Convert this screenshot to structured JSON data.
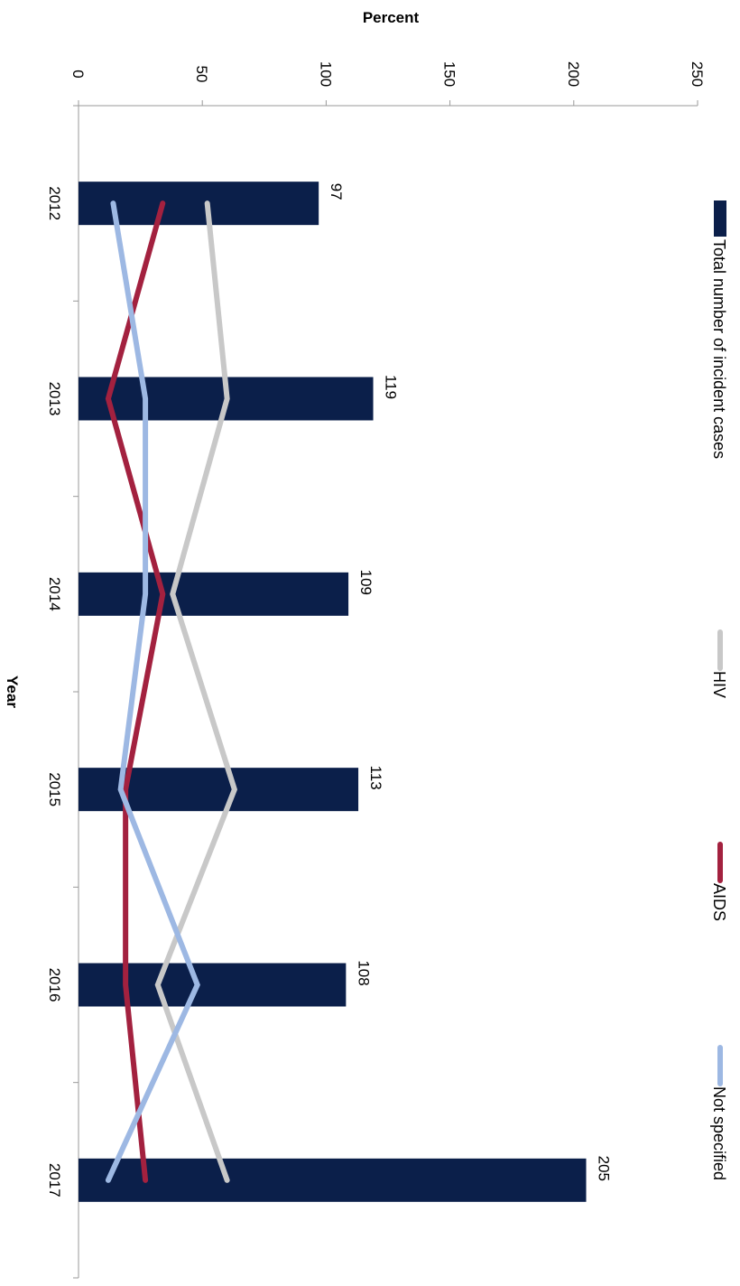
{
  "chart_data": {
    "type": "bar",
    "orientation": "rotated-90-clockwise",
    "xlabel": "Year",
    "ylabel": "Percent",
    "ylim": [
      0,
      250
    ],
    "yticks": [
      "0",
      "50",
      "100",
      "150",
      "200",
      "250"
    ],
    "categories": [
      "2012",
      "2013",
      "2014",
      "2015",
      "2016",
      "2017"
    ],
    "grid": false,
    "legend_position": "top",
    "series": [
      {
        "name": "Total number of incident cases",
        "type": "bar",
        "color": "#0b1f4a",
        "values": [
          97,
          119,
          109,
          113,
          108,
          205
        ],
        "labels": [
          "97",
          "119",
          "109",
          "113",
          "108",
          "205"
        ]
      },
      {
        "name": "HIV",
        "type": "line",
        "color": "#c8c8c8",
        "values": [
          52,
          60,
          38,
          63,
          32,
          60
        ]
      },
      {
        "name": "AIDS",
        "type": "line",
        "color": "#a3213f",
        "values": [
          34,
          12,
          34,
          19,
          19,
          27
        ]
      },
      {
        "name": "Not specified",
        "type": "line",
        "color": "#9db8e3",
        "values": [
          14,
          27,
          27,
          17,
          48,
          12
        ]
      }
    ]
  }
}
